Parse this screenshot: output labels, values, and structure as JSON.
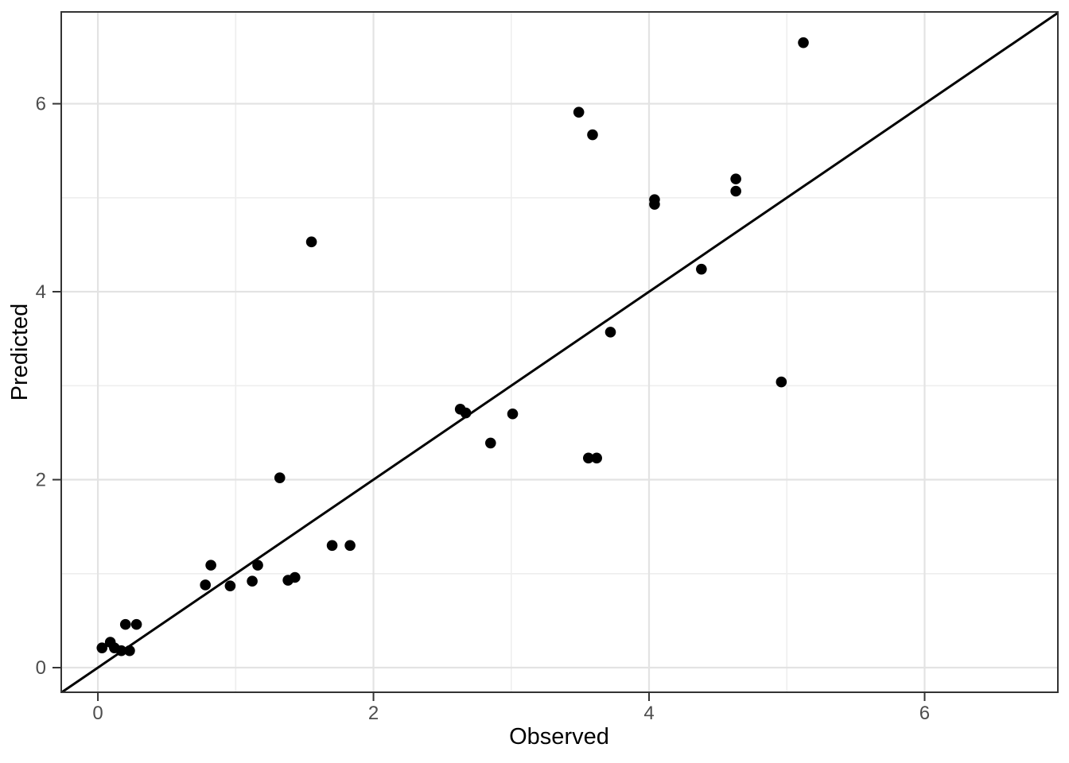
{
  "chart_data": {
    "type": "scatter",
    "title": "",
    "xlabel": "Observed",
    "ylabel": "Predicted",
    "xlim": [
      -0.266,
      6.967
    ],
    "ylim": [
      -0.262,
      6.977
    ],
    "x_major_ticks": [
      0,
      2,
      4,
      6
    ],
    "y_major_ticks": [
      0,
      2,
      4,
      6
    ],
    "x_tick_labels": [
      "0",
      "2",
      "4",
      "6"
    ],
    "y_tick_labels": [
      "0",
      "2",
      "4",
      "6"
    ],
    "x_minor_gridlines": [
      1,
      3,
      5
    ],
    "y_minor_gridlines": [
      1,
      3,
      5
    ],
    "grid": true,
    "legend": "none",
    "identity_line": {
      "slope": 1,
      "intercept": 0
    },
    "points": [
      [
        0.03,
        0.21
      ],
      [
        0.09,
        0.27
      ],
      [
        0.12,
        0.21
      ],
      [
        0.17,
        0.18
      ],
      [
        0.23,
        0.18
      ],
      [
        0.2,
        0.46
      ],
      [
        0.28,
        0.46
      ],
      [
        0.78,
        0.88
      ],
      [
        0.82,
        1.09
      ],
      [
        0.96,
        0.87
      ],
      [
        1.12,
        0.92
      ],
      [
        1.16,
        1.09
      ],
      [
        1.32,
        2.02
      ],
      [
        1.38,
        0.93
      ],
      [
        1.43,
        0.96
      ],
      [
        1.55,
        4.53
      ],
      [
        1.7,
        1.3
      ],
      [
        1.83,
        1.3
      ],
      [
        2.63,
        2.75
      ],
      [
        2.67,
        2.71
      ],
      [
        2.85,
        2.39
      ],
      [
        3.01,
        2.7
      ],
      [
        3.49,
        5.91
      ],
      [
        3.59,
        5.67
      ],
      [
        3.56,
        2.23
      ],
      [
        3.62,
        2.23
      ],
      [
        3.72,
        3.57
      ],
      [
        4.04,
        4.98
      ],
      [
        4.04,
        4.93
      ],
      [
        4.38,
        4.24
      ],
      [
        4.63,
        5.2
      ],
      [
        4.63,
        5.07
      ],
      [
        4.96,
        3.04
      ],
      [
        5.12,
        6.65
      ]
    ],
    "colors": {
      "point": "#000000",
      "identity_line": "#000000",
      "major_grid": "#e3e3e3",
      "minor_grid": "#eeeeee",
      "panel_border": "#333333",
      "tick_mark": "#333333",
      "tick_label": "#4d4d4d",
      "axis_title": "#000000",
      "panel_background": "#ffffff",
      "figure_background": "#ffffff"
    }
  }
}
